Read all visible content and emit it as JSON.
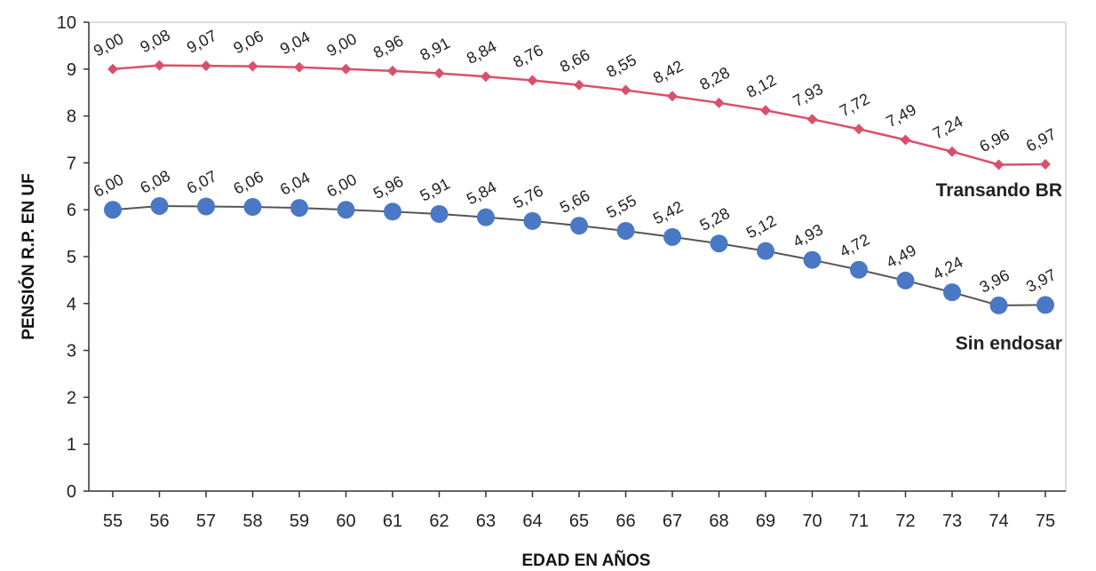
{
  "chart_data": {
    "type": "line",
    "xlabel": "EDAD EN AÑOS",
    "ylabel": "PENSIÓN R.P. EN UF",
    "ylim": [
      0,
      10
    ],
    "grid": false,
    "x": [
      "55",
      "56",
      "57",
      "58",
      "59",
      "60",
      "61",
      "62",
      "63",
      "64",
      "65",
      "66",
      "67",
      "68",
      "69",
      "70",
      "71",
      "72",
      "73",
      "74",
      "75"
    ],
    "y_ticks": [
      "0",
      "1",
      "2",
      "3",
      "4",
      "5",
      "6",
      "7",
      "8",
      "9",
      "10"
    ],
    "series": [
      {
        "name": "Transando BR",
        "color": "#d9506a",
        "marker": "diamond",
        "values": [
          9.0,
          9.08,
          9.07,
          9.06,
          9.04,
          9.0,
          8.96,
          8.91,
          8.84,
          8.76,
          8.66,
          8.55,
          8.42,
          8.28,
          8.12,
          7.93,
          7.72,
          7.49,
          7.24,
          6.96,
          6.97
        ],
        "labels": [
          "9,00",
          "9,08",
          "9,07",
          "9,06",
          "9,04",
          "9,00",
          "8,96",
          "8,91",
          "8,84",
          "8,76",
          "8,66",
          "8,55",
          "8,42",
          "8,28",
          "8,12",
          "7,93",
          "7,72",
          "7,49",
          "7,24",
          "6,96",
          "6,97"
        ]
      },
      {
        "name": "Sin endosar",
        "color": "#4a78c4",
        "marker": "circle",
        "values": [
          6.0,
          6.08,
          6.07,
          6.06,
          6.04,
          6.0,
          5.96,
          5.91,
          5.84,
          5.76,
          5.66,
          5.55,
          5.42,
          5.28,
          5.12,
          4.93,
          4.72,
          4.49,
          4.24,
          3.96,
          3.97
        ],
        "labels": [
          "6,00",
          "6,08",
          "6,07",
          "6,06",
          "6,04",
          "6,00",
          "5,96",
          "5,91",
          "5,84",
          "5,76",
          "5,66",
          "5,55",
          "5,42",
          "5,28",
          "5,12",
          "4,93",
          "4,72",
          "4,49",
          "4,24",
          "3,96",
          "3,97"
        ]
      }
    ]
  }
}
